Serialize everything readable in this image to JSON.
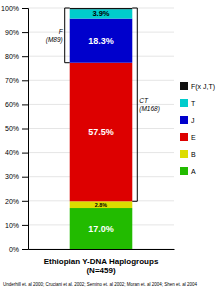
{
  "chart_data": {
    "type": "bar",
    "stacked": true,
    "title": "Ethiopian Y-DNA Haplogroups\n(N=459)",
    "footnote": "Underhill et. al 2000; Cruciani et al. 2002; Semino et. al 2002; Moran et. al 2004; Shen et. al 2004",
    "categories": [
      null
    ],
    "series": [
      {
        "name": "A",
        "color": "#22bb00",
        "values": [
          17.0
        ],
        "value_labels": [
          "17.0%"
        ]
      },
      {
        "name": "B",
        "color": "#dddd00",
        "values": [
          2.8
        ],
        "value_labels": [
          "2.8%"
        ]
      },
      {
        "name": "E",
        "color": "#dd0000",
        "values": [
          57.5
        ],
        "value_labels": [
          "57.5%"
        ]
      },
      {
        "name": "J",
        "color": "#0000cc",
        "values": [
          18.3
        ],
        "value_labels": [
          "18.3%"
        ]
      },
      {
        "name": "T",
        "color": "#00cccc",
        "values": [
          3.9
        ],
        "value_labels": [
          "3.9%"
        ]
      },
      {
        "name": "F(x J,T)",
        "color": "#111111",
        "values": [
          0.5
        ]
      }
    ],
    "data_labels": true,
    "ylim": [
      0,
      100
    ],
    "yticks": [
      {
        "value": 0,
        "label": "0%"
      },
      {
        "value": 10,
        "label": "10%"
      },
      {
        "value": 20,
        "label": "20%"
      },
      {
        "value": 30,
        "label": "30%"
      },
      {
        "value": 40,
        "label": "40%"
      },
      {
        "value": 50,
        "label": "50%"
      },
      {
        "value": 60,
        "label": "60%"
      },
      {
        "value": 70,
        "label": "70%"
      },
      {
        "value": 80,
        "label": "80%"
      },
      {
        "value": 90,
        "label": "90%"
      },
      {
        "value": 100,
        "label": "100%"
      }
    ],
    "grid": true,
    "legend": "right",
    "annotations": [
      {
        "text": "F\n(M89)",
        "y_from": 77.3,
        "y_to": 100.0,
        "side": "left"
      },
      {
        "text": "CT\n(M168)",
        "y_from": 19.8,
        "y_to": 100.0,
        "side": "right"
      }
    ]
  }
}
